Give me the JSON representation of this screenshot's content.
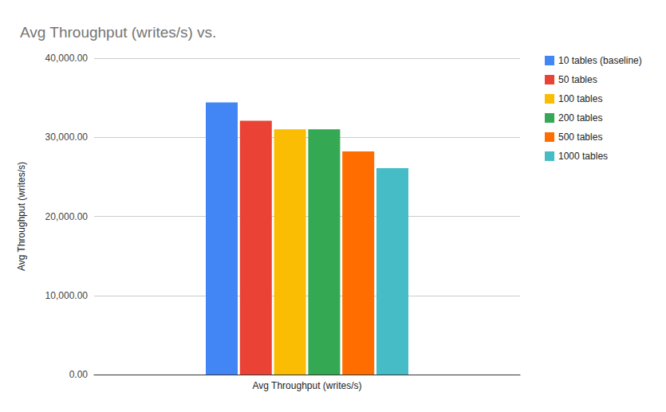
{
  "chart_data": {
    "type": "bar",
    "title": "Avg Throughput (writes/s) vs.",
    "y_label": "Avg Throughput (writes/s)",
    "categories": [
      "Avg Throughput (writes/s)"
    ],
    "series": [
      {
        "name": "10 tables (baseline)",
        "color": "#4285f4",
        "values": [
          34400
        ]
      },
      {
        "name": "50 tables",
        "color": "#ea4335",
        "values": [
          32100
        ]
      },
      {
        "name": "100 tables",
        "color": "#fbbc04",
        "values": [
          31000
        ]
      },
      {
        "name": "200 tables",
        "color": "#34a853",
        "values": [
          31000
        ]
      },
      {
        "name": "500 tables",
        "color": "#ff6d01",
        "values": [
          28200
        ]
      },
      {
        "name": "1000 tables",
        "color": "#46bdc6",
        "values": [
          26100
        ]
      }
    ],
    "ylim": [
      0,
      40000
    ],
    "yticks": [
      {
        "value": 0,
        "label": "0.00"
      },
      {
        "value": 10000,
        "label": "10,000.00"
      },
      {
        "value": 20000,
        "label": "20,000.00"
      },
      {
        "value": 30000,
        "label": "30,000.00"
      },
      {
        "value": 40000,
        "label": "40,000.00"
      }
    ],
    "grid": true,
    "legend": "right"
  }
}
